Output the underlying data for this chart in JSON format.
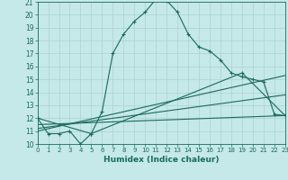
{
  "xlabel": "Humidex (Indice chaleur)",
  "background_color": "#c5e8e8",
  "grid_color": "#aed0d0",
  "line_color": "#1a6b5a",
  "xlim": [
    0,
    23
  ],
  "ylim": [
    10,
    21
  ],
  "xticks": [
    0,
    1,
    2,
    3,
    4,
    5,
    6,
    7,
    8,
    9,
    10,
    11,
    12,
    13,
    14,
    15,
    16,
    17,
    18,
    19,
    20,
    21,
    22,
    23
  ],
  "yticks": [
    10,
    11,
    12,
    13,
    14,
    15,
    16,
    17,
    18,
    19,
    20,
    21
  ],
  "line1_x": [
    0,
    1,
    2,
    3,
    4,
    5,
    6,
    7,
    8,
    9,
    10,
    11,
    12,
    13,
    14,
    15,
    16,
    17,
    18,
    19,
    20,
    21,
    22,
    23
  ],
  "line1_y": [
    12.0,
    10.8,
    10.8,
    11.0,
    10.0,
    10.8,
    12.5,
    17.0,
    18.5,
    19.5,
    20.2,
    21.2,
    21.1,
    20.2,
    18.5,
    17.5,
    17.2,
    16.5,
    15.5,
    15.2,
    15.0,
    14.8,
    12.3,
    12.2
  ],
  "line2_x": [
    0,
    5,
    19,
    23
  ],
  "line2_y": [
    12.0,
    10.8,
    15.5,
    12.2
  ],
  "line3_x": [
    0,
    23
  ],
  "line3_y": [
    11.5,
    12.2
  ],
  "line4_x": [
    0,
    23
  ],
  "line4_y": [
    11.2,
    13.8
  ],
  "line5_x": [
    0,
    23
  ],
  "line5_y": [
    11.0,
    15.3
  ]
}
